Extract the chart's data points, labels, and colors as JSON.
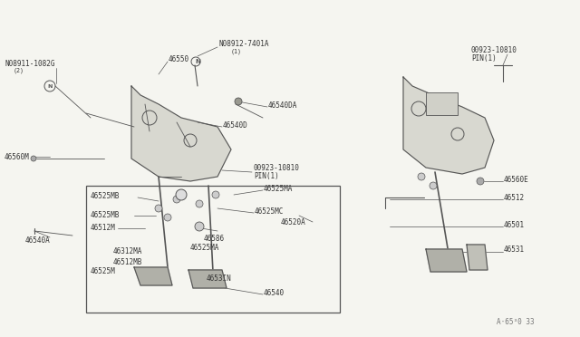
{
  "background_color": "#f5f5f0",
  "line_color": "#555555",
  "text_color": "#333333",
  "diagram_color": "#888888",
  "title": "",
  "watermark": "A·65³0 33",
  "parts": {
    "left_upper": {
      "label_n1": "N08911-1082G",
      "label_n1_note": "(2)",
      "label_46550": "46550",
      "label_n2": "N08912-7401A",
      "label_n2_note": "(1)",
      "label_46540D": "46540D",
      "label_46540DA": "46540DA",
      "label_46560M": "46560M",
      "label_pin": "00923-10810",
      "label_pin_note": "PIN(1)"
    },
    "left_box": {
      "label_46525MB_1": "46525MB",
      "label_46525MB_2": "46525MB",
      "label_46525MA_1": "46525MA",
      "label_46525MA_2": "46525MA",
      "label_46525MC": "46525MC",
      "label_46512M": "46512M",
      "label_46512MA": "46312MA",
      "label_46512MB": "46512MB",
      "label_46540A": "46540A",
      "label_46525M": "46525M",
      "label_46586": "46586",
      "label_46520A": "46520A",
      "label_4653IN": "4653IN",
      "label_46540": "46540"
    },
    "right": {
      "label_pin": "00923-10810",
      "label_pin_note": "PIN(1)",
      "label_46560E": "46560E",
      "label_46512": "46512",
      "label_46501": "46501",
      "label_46531": "46531"
    }
  }
}
